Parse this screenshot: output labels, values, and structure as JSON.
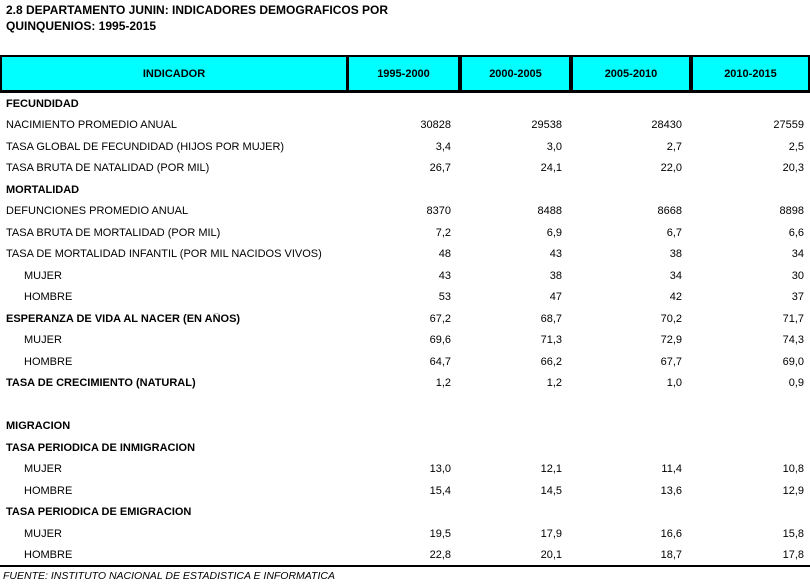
{
  "title": {
    "line1": "2.8 DEPARTAMENTO JUNIN: INDICADORES DEMOGRAFICOS POR",
    "line2": "QUINQUENIOS: 1995-2015"
  },
  "table": {
    "header_bg": "#00ffff",
    "header": [
      "INDICADOR",
      "1995-2000",
      "2000-2005",
      "2005-2010",
      "2010-2015"
    ],
    "rows": [
      {
        "label": "FECUNDIDAD",
        "bold": true,
        "indent": false,
        "values": [
          "",
          "",
          "",
          ""
        ]
      },
      {
        "label": "NACIMIENTO PROMEDIO ANUAL",
        "bold": false,
        "indent": false,
        "values": [
          "30828",
          "29538",
          "28430",
          "27559"
        ]
      },
      {
        "label": "TASA GLOBAL DE FECUNDIDAD (HIJOS POR MUJER)",
        "bold": false,
        "indent": false,
        "values": [
          "3,4",
          "3,0",
          "2,7",
          "2,5"
        ]
      },
      {
        "label": "TASA BRUTA DE NATALIDAD (POR MIL)",
        "bold": false,
        "indent": false,
        "values": [
          "26,7",
          "24,1",
          "22,0",
          "20,3"
        ]
      },
      {
        "label": "MORTALIDAD",
        "bold": true,
        "indent": false,
        "values": [
          "",
          "",
          "",
          ""
        ]
      },
      {
        "label": "DEFUNCIONES PROMEDIO ANUAL",
        "bold": false,
        "indent": false,
        "values": [
          "8370",
          "8488",
          "8668",
          "8898"
        ]
      },
      {
        "label": "TASA BRUTA DE MORTALIDAD (POR MIL)",
        "bold": false,
        "indent": false,
        "values": [
          "7,2",
          "6,9",
          "6,7",
          "6,6"
        ]
      },
      {
        "label": "TASA DE MORTALIDAD INFANTIL (POR MIL NACIDOS VIVOS)",
        "bold": false,
        "indent": false,
        "values": [
          "48",
          "43",
          "38",
          "34"
        ]
      },
      {
        "label": "MUJER",
        "bold": false,
        "indent": true,
        "values": [
          "43",
          "38",
          "34",
          "30"
        ]
      },
      {
        "label": "HOMBRE",
        "bold": false,
        "indent": true,
        "values": [
          "53",
          "47",
          "42",
          "37"
        ]
      },
      {
        "label": "ESPERANZA DE VIDA AL NACER (EN AÑOS)",
        "bold": true,
        "indent": false,
        "values": [
          "67,2",
          "68,7",
          "70,2",
          "71,7"
        ]
      },
      {
        "label": "MUJER",
        "bold": false,
        "indent": true,
        "values": [
          "69,6",
          "71,3",
          "72,9",
          "74,3"
        ]
      },
      {
        "label": "HOMBRE",
        "bold": false,
        "indent": true,
        "values": [
          "64,7",
          "66,2",
          "67,7",
          "69,0"
        ]
      },
      {
        "label": "TASA DE CRECIMIENTO (NATURAL)",
        "bold": true,
        "indent": false,
        "values": [
          "1,2",
          "1,2",
          "1,0",
          "0,9"
        ]
      },
      {
        "label": "",
        "bold": false,
        "indent": false,
        "values": [
          "",
          "",
          "",
          ""
        ]
      },
      {
        "label": "MIGRACION",
        "bold": true,
        "indent": false,
        "values": [
          "",
          "",
          "",
          ""
        ]
      },
      {
        "label": "TASA PERIODICA DE INMIGRACION",
        "bold": true,
        "indent": false,
        "values": [
          "",
          "",
          "",
          ""
        ]
      },
      {
        "label": "MUJER",
        "bold": false,
        "indent": true,
        "values": [
          "13,0",
          "12,1",
          "11,4",
          "10,8"
        ]
      },
      {
        "label": "HOMBRE",
        "bold": false,
        "indent": true,
        "values": [
          "15,4",
          "14,5",
          "13,6",
          "12,9"
        ]
      },
      {
        "label": "TASA PERIODICA DE EMIGRACION",
        "bold": true,
        "indent": false,
        "values": [
          "",
          "",
          "",
          ""
        ]
      },
      {
        "label": "MUJER",
        "bold": false,
        "indent": true,
        "values": [
          "19,5",
          "17,9",
          "16,6",
          "15,8"
        ]
      },
      {
        "label": "HOMBRE",
        "bold": false,
        "indent": true,
        "values": [
          "22,8",
          "20,1",
          "18,7",
          "17,8"
        ]
      }
    ]
  },
  "footer": {
    "text": "FUENTE: INSTITUTO NACIONAL DE ESTADISTICA E INFORMATICA"
  }
}
